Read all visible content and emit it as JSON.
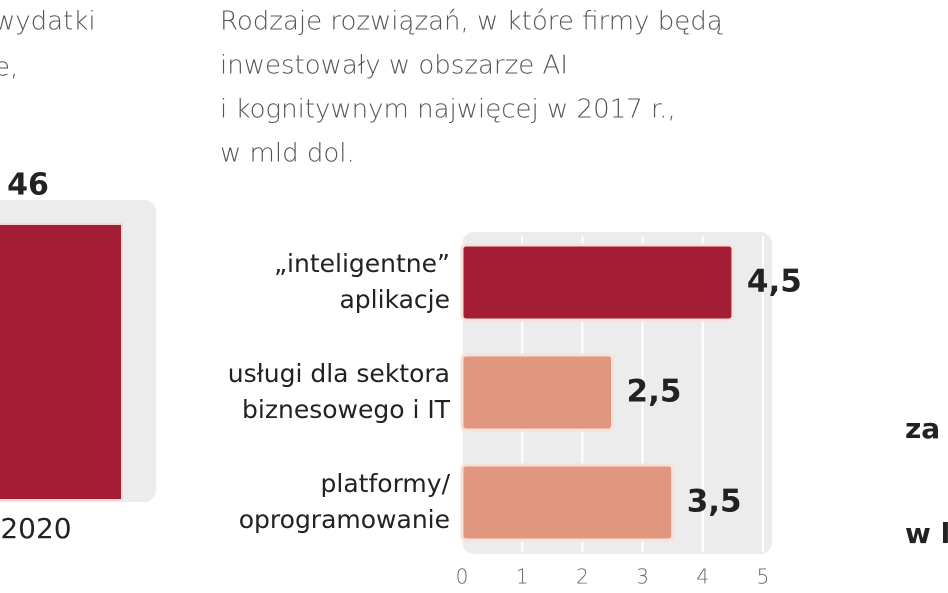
{
  "chart_data": [
    {
      "type": "bar",
      "title_lines": [
        "wydatki",
        "e,"
      ],
      "categories": [
        "2020"
      ],
      "values": [
        46
      ],
      "color": "#a31d34",
      "ylim": [
        0,
        50
      ]
    },
    {
      "type": "hbar",
      "title_lines": [
        "Rodzaje rozwiązań, w które firmy będą",
        " inwestowały w obszarze AI",
        "i kognitywnym najwięcej w 2017 r.,",
        "w mld dol."
      ],
      "categories": [
        [
          "„inteligentne”",
          "aplikacje"
        ],
        [
          "usługi dla sektora",
          "biznesowego i IT"
        ],
        [
          "platformy/",
          "oprogramowanie"
        ]
      ],
      "values": [
        4.5,
        2.5,
        3.5
      ],
      "value_labels": [
        "4,5",
        "2,5",
        "3,5"
      ],
      "colors": [
        "#a31d34",
        "#e0967f",
        "#e0967f"
      ],
      "xlim": [
        0,
        5
      ],
      "xticks": [
        0,
        1,
        2,
        3,
        4,
        5
      ],
      "grid": true
    }
  ],
  "fragments": [
    "za",
    "w l"
  ]
}
